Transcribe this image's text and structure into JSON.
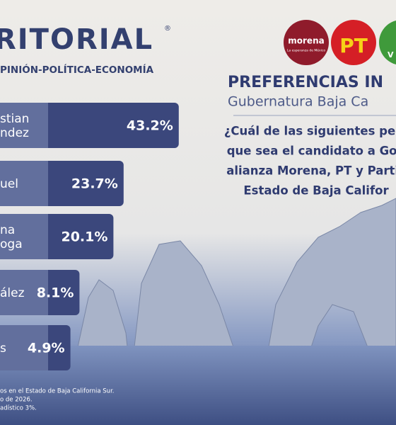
{
  "brand": {
    "name": "RITORIAL",
    "registered": "®",
    "tagline": "PINIÓN-POLÍTICA-ECONOMÍA"
  },
  "parties": {
    "morena": "morena",
    "morena_slogan": "La esperanza de México",
    "pt": "PT",
    "verde": "V"
  },
  "header": {
    "title": "PREFERENCIAS IN",
    "subtitle": "Gubernatura Baja Ca"
  },
  "question": [
    "¿Cuál de las siguientes pers",
    "que sea el candidato a Gob",
    "alianza Morena, PT y Partic",
    "Estado de Baja Califor"
  ],
  "footnote": [
    "os en el Estado de Baja California Sur.",
    "o de 2026.",
    "adístico 3%."
  ],
  "chart_data": {
    "type": "bar",
    "orientation": "horizontal",
    "categories": [
      [
        "stian",
        "ndez"
      ],
      [
        "uel"
      ],
      [
        "na",
        "oga"
      ],
      [
        "ález"
      ],
      [
        "s"
      ]
    ],
    "values": [
      43.2,
      23.7,
      20.1,
      8.1,
      4.9
    ],
    "value_labels": [
      "43.2%",
      "23.7%",
      "20.1%",
      "8.1%",
      "4.9%"
    ],
    "color": "#3b477c"
  }
}
